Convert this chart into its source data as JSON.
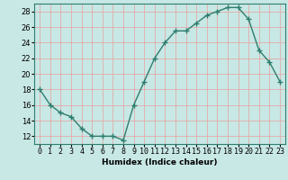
{
  "x": [
    0,
    1,
    2,
    3,
    4,
    5,
    6,
    7,
    8,
    9,
    10,
    11,
    12,
    13,
    14,
    15,
    16,
    17,
    18,
    19,
    20,
    21,
    22,
    23
  ],
  "y": [
    18,
    16,
    15,
    14.5,
    13,
    12,
    12,
    12,
    11.5,
    16,
    19,
    22,
    24,
    25.5,
    25.5,
    26.5,
    27.5,
    28,
    28.5,
    28.5,
    27,
    23,
    21.5,
    19
  ],
  "line_color": "#2e7d6e",
  "marker": "+",
  "marker_color": "#2e7d6e",
  "bg_color": "#c8e8e5",
  "grid_color": "#e8a0a0",
  "xlabel": "Humidex (Indice chaleur)",
  "xlim": [
    -0.5,
    23.5
  ],
  "ylim": [
    11,
    29
  ],
  "yticks": [
    12,
    14,
    16,
    18,
    20,
    22,
    24,
    26,
    28
  ],
  "xticks": [
    0,
    1,
    2,
    3,
    4,
    5,
    6,
    7,
    8,
    9,
    10,
    11,
    12,
    13,
    14,
    15,
    16,
    17,
    18,
    19,
    20,
    21,
    22,
    23
  ],
  "xtick_labels": [
    "0",
    "1",
    "2",
    "3",
    "4",
    "5",
    "6",
    "7",
    "8",
    "9",
    "10",
    "11",
    "12",
    "13",
    "14",
    "15",
    "16",
    "17",
    "18",
    "19",
    "20",
    "21",
    "22",
    "23"
  ],
  "line_width": 1.0,
  "marker_size": 4
}
